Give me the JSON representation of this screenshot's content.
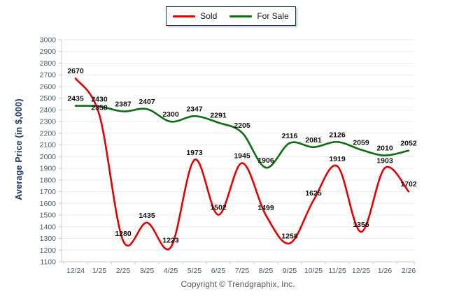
{
  "legend": {
    "items": [
      {
        "label": "Sold"
      },
      {
        "label": "For Sale"
      }
    ]
  },
  "y_axis_title": "Average Price (in $,000)",
  "footer": {
    "copyright": "Copyright © Trendgraphix, Inc."
  },
  "chart_data": {
    "type": "line",
    "title": "",
    "xlabel": "",
    "ylabel": "Average Price (in $,000)",
    "categories": [
      "12/24",
      "1/25",
      "2/25",
      "3/25",
      "4/25",
      "5/25",
      "6/25",
      "7/25",
      "8/25",
      "9/25",
      "10/25",
      "11/25",
      "12/25",
      "1/26",
      "2/26"
    ],
    "series": [
      {
        "name": "Sold",
        "color": "#e60000",
        "values": [
          2670,
          2358,
          1280,
          1435,
          1223,
          1973,
          1502,
          1945,
          1499,
          1258,
          1625,
          1919,
          1356,
          1903,
          1702
        ]
      },
      {
        "name": "For Sale",
        "color": "#0d6e0d",
        "values": [
          2435,
          2430,
          2387,
          2407,
          2300,
          2347,
          2291,
          2205,
          1906,
          2116,
          2081,
          2126,
          2059,
          2010,
          2052
        ]
      }
    ],
    "ylim": [
      1100,
      3000
    ],
    "ytick_step": 100,
    "grid": "horizontal",
    "legend_position": "top-center",
    "line_style": "smooth",
    "data_labels": true,
    "colors": {
      "gridline": "#ebebeb",
      "axis": "#c8c8c8",
      "tick_text": "#4f5b67",
      "data_label_text": "#111111"
    }
  }
}
